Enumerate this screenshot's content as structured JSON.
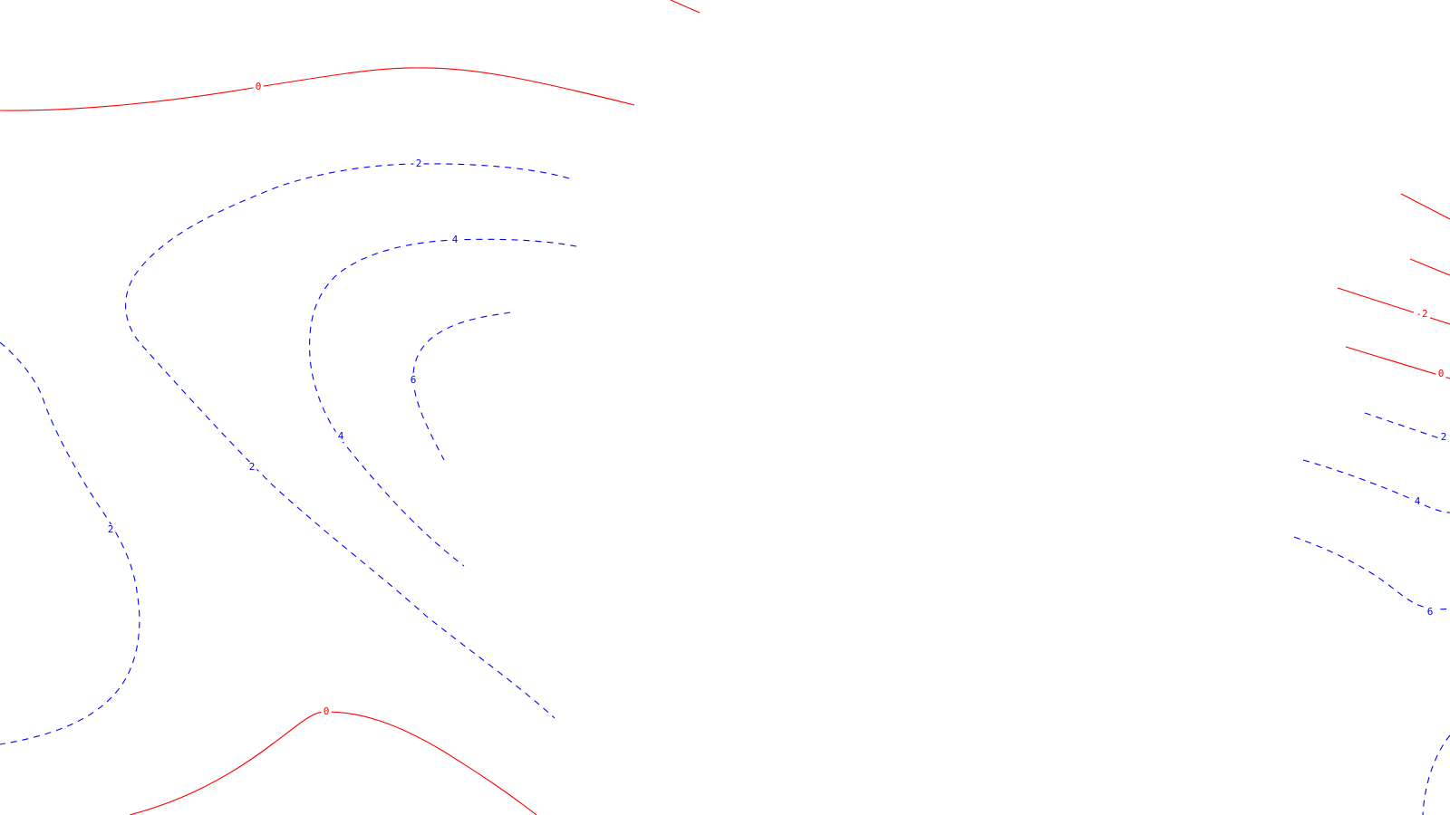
{
  "colors": {
    "negative_or_zero": "#ff0000",
    "positive": "#0000ff",
    "background": "#ffffff"
  },
  "contours": [
    {
      "id": "c0-top-left",
      "level": "0",
      "sign": "zero"
    },
    {
      "id": "c0-top-stub",
      "level": "",
      "sign": "zero"
    },
    {
      "id": "c2-arc-left",
      "level": "2",
      "sign": "positive"
    },
    {
      "id": "c4-arc-left",
      "level": "4",
      "sign": "positive"
    },
    {
      "id": "c6-arc-left",
      "level": "6",
      "sign": "positive"
    },
    {
      "id": "c2-far-left",
      "level": "2",
      "sign": "positive"
    },
    {
      "id": "c0-bottom-left",
      "level": "0",
      "sign": "zero"
    },
    {
      "id": "cneg-right-1",
      "level": "",
      "sign": "negative"
    },
    {
      "id": "cneg-right-2",
      "level": "",
      "sign": "negative"
    },
    {
      "id": "cneg-right-3",
      "level": "-2",
      "sign": "negative"
    },
    {
      "id": "c0-right",
      "level": "0",
      "sign": "zero"
    },
    {
      "id": "c2-right",
      "level": "2",
      "sign": "positive"
    },
    {
      "id": "c4-right",
      "level": "4",
      "sign": "positive"
    },
    {
      "id": "c6-right",
      "level": "6",
      "sign": "positive"
    },
    {
      "id": "cpos-bottom-right",
      "level": "",
      "sign": "positive"
    }
  ],
  "labels": [
    {
      "contour": "c0-top-left",
      "text": "0"
    },
    {
      "contour": "c2-arc-left",
      "text": "2"
    },
    {
      "contour": "c4-arc-left",
      "text": "4"
    },
    {
      "contour": "c4-arc-left",
      "text": "4"
    },
    {
      "contour": "c6-arc-left",
      "text": "6"
    },
    {
      "contour": "c2-arc-left",
      "text": "2"
    },
    {
      "contour": "c2-far-left",
      "text": "2"
    },
    {
      "contour": "c0-bottom-left",
      "text": "0"
    },
    {
      "contour": "cneg-right-3",
      "text": "-2"
    },
    {
      "contour": "c0-right",
      "text": "0"
    },
    {
      "contour": "c2-right",
      "text": "2"
    },
    {
      "contour": "c4-right",
      "text": "4"
    },
    {
      "contour": "c6-right",
      "text": "6"
    }
  ]
}
